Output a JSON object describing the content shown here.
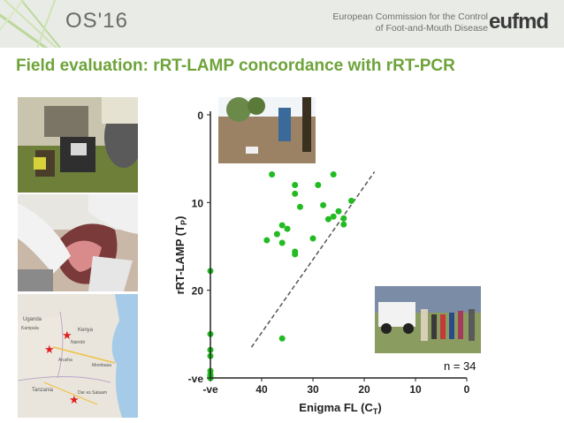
{
  "header": {
    "title": "OS'16",
    "org_line1": "European Commission for the Control",
    "org_line2": "of Foot-and-Mouth Disease",
    "logo_text": "eufmd"
  },
  "slide": {
    "title": "Field evaluation: rRT-LAMP concordance with rRT-PCR"
  },
  "map_labels": {
    "uganda": "Uganda",
    "kampala": "Kampala",
    "kenya": "Kenya",
    "nairobi": "Nairobi",
    "tanzania": "Tanzania",
    "dar": "Dar es Salaam",
    "arusha": "Arusha",
    "mombasa": "Mombasa"
  },
  "colors": {
    "accent_green": "#6ea33a",
    "point_green": "#22bb22",
    "star_red": "#e02020"
  },
  "chart_data": {
    "type": "scatter",
    "xlabel": "Enigma  FL (C",
    "xlabel_sub": "T",
    "xlabel_close": ")",
    "ylabel": "rRT-LAMP (T",
    "ylabel_sub": "P",
    "ylabel_close": ")",
    "x_ticks": [
      "-ve",
      "40",
      "30",
      "20",
      "10",
      "0"
    ],
    "y_ticks": [
      "0",
      "10",
      "20",
      "-ve"
    ],
    "x_reversed": true,
    "xlim": [
      50,
      0
    ],
    "ylim": [
      0,
      30
    ],
    "negative_value": 30,
    "annotation": "n = 34",
    "trendline": {
      "x": [
        42,
        18
      ],
      "y": [
        26.5,
        6.5
      ],
      "style": "dashed"
    },
    "points": [
      {
        "x": 38,
        "y": 6.8
      },
      {
        "x": 33.5,
        "y": 8.0
      },
      {
        "x": 33.5,
        "y": 9.0
      },
      {
        "x": 26,
        "y": 6.8
      },
      {
        "x": 29,
        "y": 8.0
      },
      {
        "x": 22.5,
        "y": 9.8
      },
      {
        "x": 28,
        "y": 10.3
      },
      {
        "x": 32.5,
        "y": 10.5
      },
      {
        "x": 25,
        "y": 11.0
      },
      {
        "x": 24,
        "y": 11.8
      },
      {
        "x": 26,
        "y": 11.6
      },
      {
        "x": 27,
        "y": 11.9
      },
      {
        "x": 24,
        "y": 12.5
      },
      {
        "x": 36,
        "y": 12.6
      },
      {
        "x": 35,
        "y": 13.0
      },
      {
        "x": 37,
        "y": 13.6
      },
      {
        "x": 39,
        "y": 14.3
      },
      {
        "x": 36,
        "y": 14.6
      },
      {
        "x": 30,
        "y": 14.1
      },
      {
        "x": 33.5,
        "y": 15.6
      },
      {
        "x": 33.5,
        "y": 15.9
      },
      {
        "x": 50,
        "y": 17.8
      },
      {
        "x": 36,
        "y": 25.5
      },
      {
        "x": 50,
        "y": 25.0
      },
      {
        "x": 50,
        "y": 26.8
      },
      {
        "x": 50,
        "y": 27.5
      },
      {
        "x": 50,
        "y": 29.2
      },
      {
        "x": 50,
        "y": 29.6
      },
      {
        "x": 50,
        "y": 29.8
      },
      {
        "x": 50,
        "y": 30.0
      },
      {
        "x": 50,
        "y": 30.0
      },
      {
        "x": 50,
        "y": 29.9
      },
      {
        "x": 50,
        "y": 30.0
      },
      {
        "x": 50,
        "y": 29.7
      }
    ]
  }
}
